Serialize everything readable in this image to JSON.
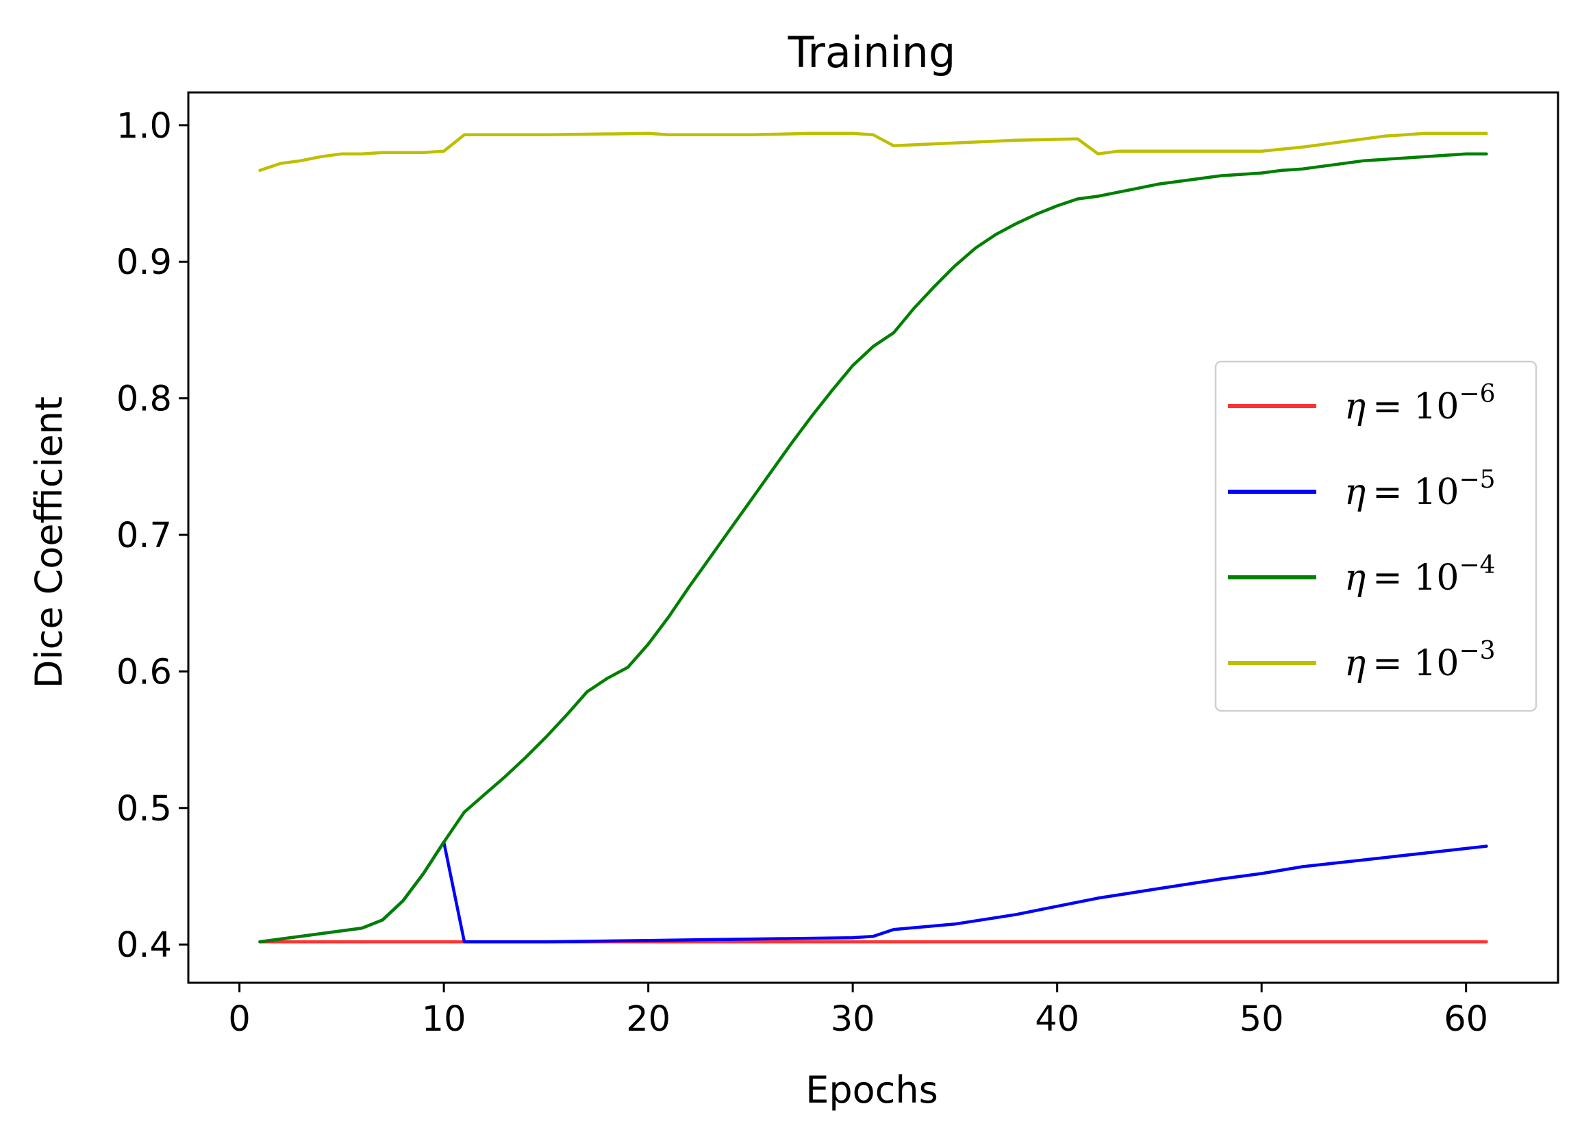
{
  "chart_data": {
    "type": "line",
    "title": "Training",
    "xlabel": "Epochs",
    "ylabel": "Dice Coefficient",
    "xlim": [
      -2.5,
      64.5
    ],
    "ylim": [
      0.372,
      1.024
    ],
    "xticks": [
      0,
      10,
      20,
      30,
      40,
      50,
      60
    ],
    "yticks": [
      0.4,
      0.5,
      0.6,
      0.7,
      0.8,
      0.9,
      1.0
    ],
    "xtick_labels": [
      "0",
      "10",
      "20",
      "30",
      "40",
      "50",
      "60"
    ],
    "ytick_labels": [
      "0.4",
      "0.5",
      "0.6",
      "0.7",
      "0.8",
      "0.9",
      "1.0"
    ],
    "grid": false,
    "legend_position": "center-right",
    "series": [
      {
        "name": "η = 10⁻⁶",
        "legend_symbol": "η",
        "legend_base": "= 10",
        "legend_exp": "−6",
        "color": "#ff3333",
        "x": [
          1,
          10,
          20,
          30,
          40,
          50,
          61
        ],
        "y": [
          0.402,
          0.402,
          0.402,
          0.402,
          0.402,
          0.402,
          0.402
        ]
      },
      {
        "name": "η = 10⁻⁵",
        "legend_symbol": "η",
        "legend_base": "= 10",
        "legend_exp": "−5",
        "color": "#0000ff",
        "x": [
          1,
          2,
          3,
          4,
          5,
          6,
          7,
          8,
          9,
          10,
          11,
          15,
          20,
          25,
          30,
          31,
          32,
          35,
          38,
          40,
          42,
          45,
          48,
          50,
          52,
          55,
          58,
          61
        ],
        "y": [
          0.402,
          0.404,
          0.406,
          0.408,
          0.41,
          0.412,
          0.418,
          0.432,
          0.452,
          0.475,
          0.402,
          0.402,
          0.403,
          0.404,
          0.405,
          0.406,
          0.411,
          0.415,
          0.422,
          0.428,
          0.434,
          0.441,
          0.448,
          0.452,
          0.457,
          0.462,
          0.467,
          0.472
        ]
      },
      {
        "name": "η = 10⁻⁴",
        "legend_symbol": "η",
        "legend_base": "= 10",
        "legend_exp": "−4",
        "color": "#008000",
        "x": [
          1,
          2,
          3,
          4,
          5,
          6,
          7,
          8,
          9,
          10,
          11,
          12,
          13,
          14,
          15,
          16,
          17,
          18,
          19,
          20,
          21,
          22,
          23,
          24,
          25,
          26,
          27,
          28,
          29,
          30,
          31,
          32,
          33,
          34,
          35,
          36,
          37,
          38,
          39,
          40,
          41,
          42,
          43,
          44,
          45,
          46,
          47,
          48,
          49,
          50,
          51,
          52,
          53,
          54,
          55,
          56,
          57,
          58,
          59,
          60,
          61
        ],
        "y": [
          0.402,
          0.404,
          0.406,
          0.408,
          0.41,
          0.412,
          0.418,
          0.432,
          0.452,
          0.475,
          0.497,
          0.51,
          0.523,
          0.537,
          0.552,
          0.568,
          0.585,
          0.595,
          0.603,
          0.62,
          0.64,
          0.662,
          0.683,
          0.704,
          0.725,
          0.746,
          0.767,
          0.787,
          0.806,
          0.824,
          0.838,
          0.848,
          0.866,
          0.882,
          0.897,
          0.91,
          0.92,
          0.928,
          0.935,
          0.941,
          0.946,
          0.948,
          0.951,
          0.954,
          0.957,
          0.959,
          0.961,
          0.963,
          0.964,
          0.965,
          0.967,
          0.968,
          0.97,
          0.972,
          0.974,
          0.975,
          0.976,
          0.977,
          0.978,
          0.979,
          0.979
        ]
      },
      {
        "name": "η = 10⁻³",
        "legend_symbol": "η",
        "legend_base": "= 10",
        "legend_exp": "−3",
        "color": "#bfbf00",
        "x": [
          1,
          2,
          3,
          4,
          5,
          6,
          7,
          8,
          9,
          10,
          11,
          12,
          15,
          20,
          21,
          22,
          25,
          28,
          30,
          31,
          32,
          35,
          38,
          41,
          42,
          43,
          45,
          50,
          52,
          54,
          56,
          58,
          60,
          61
        ],
        "y": [
          0.967,
          0.972,
          0.974,
          0.977,
          0.979,
          0.979,
          0.98,
          0.98,
          0.98,
          0.981,
          0.993,
          0.993,
          0.993,
          0.994,
          0.993,
          0.993,
          0.993,
          0.994,
          0.994,
          0.993,
          0.985,
          0.987,
          0.989,
          0.99,
          0.979,
          0.981,
          0.981,
          0.981,
          0.984,
          0.988,
          0.992,
          0.994,
          0.994,
          0.994
        ]
      }
    ]
  }
}
